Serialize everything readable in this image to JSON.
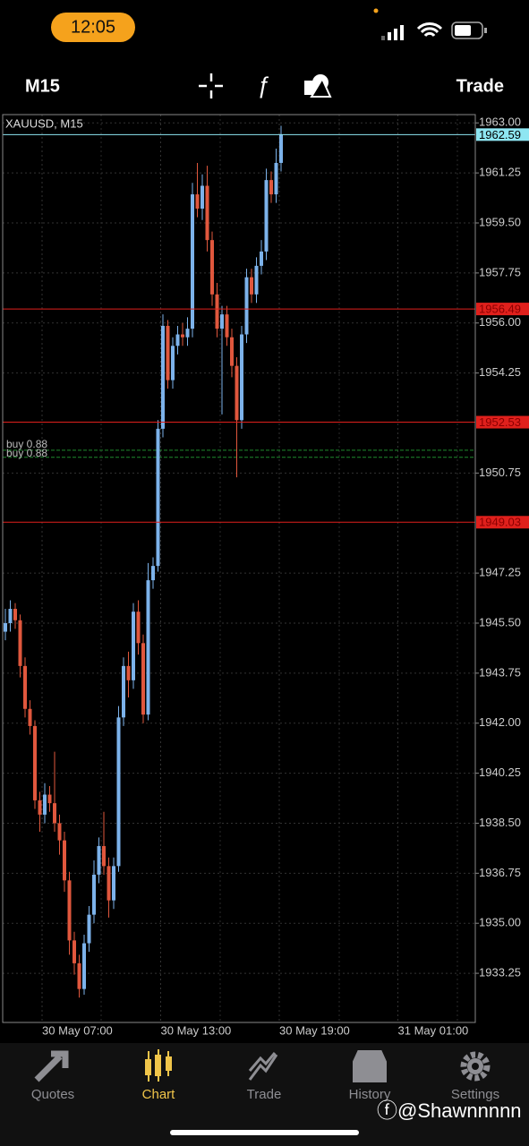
{
  "status_bar": {
    "time": "12:05"
  },
  "toolbar": {
    "period": "M15",
    "trade": "Trade"
  },
  "chart_data": {
    "type": "candlestick",
    "title": "XAUUSD, M15",
    "up_color": "#7cb2ea",
    "down_color": "#e0573d",
    "ylim": [
      1931.53,
      1963.29
    ],
    "yticks": [
      {
        "value": 1963.0,
        "label": "1963.00"
      },
      {
        "value": 1961.25,
        "label": "1961.25"
      },
      {
        "value": 1959.5,
        "label": "1959.50"
      },
      {
        "value": 1957.75,
        "label": "1957.75"
      },
      {
        "value": 1956.0,
        "label": "1956.00"
      },
      {
        "value": 1954.25,
        "label": "1954.25"
      },
      {
        "value": 1950.75,
        "label": "1950.75"
      },
      {
        "value": 1947.25,
        "label": "1947.25"
      },
      {
        "value": 1945.5,
        "label": "1945.50"
      },
      {
        "value": 1943.75,
        "label": "1943.75"
      },
      {
        "value": 1942.0,
        "label": "1942.00"
      },
      {
        "value": 1940.25,
        "label": "1940.25"
      },
      {
        "value": 1938.5,
        "label": "1938.50"
      },
      {
        "value": 1936.75,
        "label": "1936.75"
      },
      {
        "value": 1935.0,
        "label": "1935.00"
      },
      {
        "value": 1933.25,
        "label": "1933.25"
      }
    ],
    "xticks": [
      "30 May 07:00",
      "30 May 13:00",
      "30 May 19:00",
      "31 May 01:00"
    ],
    "price_lines": [
      {
        "value": 1962.59,
        "color": "#8ee6f2"
      },
      {
        "value": 1956.49,
        "color": "#e0201c"
      },
      {
        "value": 1952.53,
        "color": "#e0201c"
      },
      {
        "value": 1949.03,
        "color": "#e0201c"
      }
    ],
    "positions": [
      {
        "label": "buy 0.88",
        "value": 1951.55
      },
      {
        "label": "buy 0.88",
        "value": 1951.3
      }
    ],
    "candles": [
      [
        1945.2,
        1946.0,
        1944.9,
        1945.5
      ],
      [
        1945.5,
        1946.3,
        1945.2,
        1946.0
      ],
      [
        1946.0,
        1946.2,
        1945.3,
        1945.6
      ],
      [
        1945.6,
        1945.8,
        1943.6,
        1944.0
      ],
      [
        1944.0,
        1944.3,
        1942.2,
        1942.5
      ],
      [
        1942.5,
        1942.8,
        1941.6,
        1941.9
      ],
      [
        1941.9,
        1942.1,
        1939.0,
        1939.3
      ],
      [
        1939.3,
        1939.6,
        1938.2,
        1938.8
      ],
      [
        1938.8,
        1939.9,
        1938.5,
        1939.5
      ],
      [
        1939.5,
        1939.8,
        1938.9,
        1939.2
      ],
      [
        1939.2,
        1941.0,
        1938.2,
        1938.5
      ],
      [
        1938.5,
        1938.8,
        1937.4,
        1937.9
      ],
      [
        1937.9,
        1938.2,
        1936.1,
        1936.5
      ],
      [
        1936.5,
        1936.8,
        1933.9,
        1934.4
      ],
      [
        1934.4,
        1934.7,
        1933.2,
        1933.6
      ],
      [
        1933.6,
        1933.9,
        1932.4,
        1932.7
      ],
      [
        1932.7,
        1934.6,
        1932.5,
        1934.3
      ],
      [
        1934.3,
        1935.6,
        1934.0,
        1935.3
      ],
      [
        1935.3,
        1937.2,
        1935.0,
        1936.7
      ],
      [
        1936.7,
        1938.0,
        1936.4,
        1937.7
      ],
      [
        1937.7,
        1938.9,
        1936.7,
        1937.0
      ],
      [
        1937.0,
        1937.3,
        1935.2,
        1935.8
      ],
      [
        1935.8,
        1937.3,
        1935.5,
        1937.0
      ],
      [
        1937.0,
        1942.6,
        1936.8,
        1942.2
      ],
      [
        1942.2,
        1944.3,
        1941.9,
        1944.0
      ],
      [
        1944.0,
        1944.5,
        1942.9,
        1943.5
      ],
      [
        1943.5,
        1946.2,
        1943.2,
        1945.9
      ],
      [
        1945.9,
        1946.3,
        1944.4,
        1944.8
      ],
      [
        1944.8,
        1945.1,
        1942.0,
        1942.3
      ],
      [
        1942.3,
        1947.6,
        1942.1,
        1947.0
      ],
      [
        1947.0,
        1947.8,
        1946.7,
        1947.5
      ],
      [
        1947.5,
        1952.6,
        1947.3,
        1952.3
      ],
      [
        1952.3,
        1956.3,
        1952.0,
        1955.9
      ],
      [
        1955.9,
        1956.1,
        1953.7,
        1954.0
      ],
      [
        1954.0,
        1955.5,
        1953.7,
        1955.2
      ],
      [
        1955.2,
        1955.9,
        1954.9,
        1955.6
      ],
      [
        1955.6,
        1956.0,
        1955.2,
        1955.5
      ],
      [
        1955.5,
        1956.2,
        1955.2,
        1955.8
      ],
      [
        1955.8,
        1960.9,
        1955.5,
        1960.5
      ],
      [
        1960.5,
        1961.6,
        1959.7,
        1960.0
      ],
      [
        1960.0,
        1961.2,
        1959.6,
        1960.8
      ],
      [
        1960.8,
        1961.5,
        1958.5,
        1958.9
      ],
      [
        1958.9,
        1959.2,
        1956.6,
        1957.0
      ],
      [
        1957.0,
        1957.4,
        1955.5,
        1955.8
      ],
      [
        1955.8,
        1956.6,
        1952.8,
        1956.3
      ],
      [
        1956.3,
        1956.6,
        1955.2,
        1955.5
      ],
      [
        1955.5,
        1955.8,
        1954.1,
        1954.5
      ],
      [
        1954.5,
        1954.8,
        1950.6,
        1952.6
      ],
      [
        1952.6,
        1955.9,
        1952.3,
        1955.6
      ],
      [
        1955.6,
        1957.9,
        1955.3,
        1957.6
      ],
      [
        1957.6,
        1957.9,
        1956.7,
        1957.0
      ],
      [
        1957.0,
        1958.3,
        1956.7,
        1958.0
      ],
      [
        1958.0,
        1958.9,
        1957.7,
        1958.5
      ],
      [
        1958.5,
        1961.4,
        1958.2,
        1961.0
      ],
      [
        1961.0,
        1961.3,
        1960.2,
        1960.5
      ],
      [
        1960.5,
        1962.1,
        1960.2,
        1961.6
      ],
      [
        1961.6,
        1962.9,
        1961.3,
        1962.59
      ]
    ]
  },
  "tab_bar": {
    "tabs": [
      "Quotes",
      "Chart",
      "Trade",
      "History",
      "Settings"
    ]
  },
  "watermark": "@Shawnnnnn"
}
